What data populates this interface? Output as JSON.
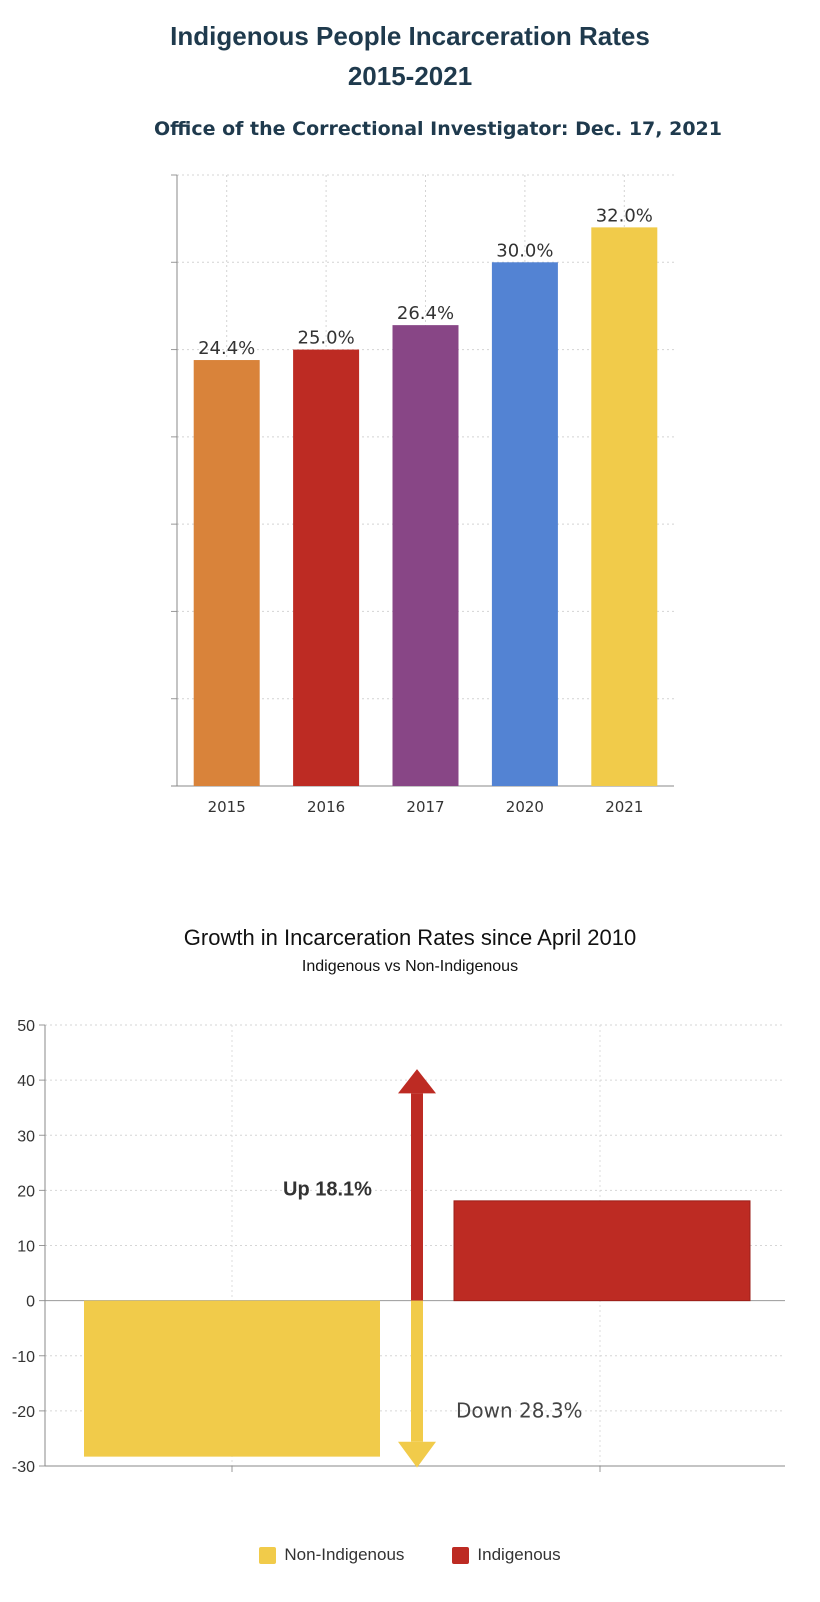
{
  "chart_data": [
    {
      "type": "bar",
      "title_line1": "Indigenous  People Incarceration Rates",
      "title_line2": "2015-2021",
      "subtitle": "Office of the Correctional Investigator: Dec. 17, 2021",
      "categories": [
        "2015",
        "2016",
        "2017",
        "2020",
        "2021"
      ],
      "values": [
        24.4,
        25.0,
        26.4,
        30.0,
        32.0
      ],
      "data_labels": [
        "24.4%",
        "25.0%",
        "26.4%",
        "30.0%",
        "32.0%"
      ],
      "colors": [
        "#d9833a",
        "#bd2b23",
        "#884686",
        "#5383d3",
        "#f1cb4a"
      ],
      "ylim": [
        0,
        35
      ],
      "grid": true
    },
    {
      "type": "bar",
      "title": "Growth in Incarceration Rates since April 2010",
      "subtitle": "Indigenous vs Non-Indigenous",
      "series": [
        {
          "name": "Non-Indigenous",
          "value": -28.3,
          "color": "#f1cb4a"
        },
        {
          "name": "Indigenous",
          "value": 18.1,
          "color": "#bd2b23"
        }
      ],
      "yticks": [
        "50",
        "40",
        "30",
        "20",
        "10",
        "0",
        "-10",
        "-20",
        "-30"
      ],
      "ylim": [
        -30,
        50
      ],
      "annotations": [
        "Up 18.1%",
        "Down 28.3%"
      ],
      "legend_position": "bottom",
      "grid": true
    }
  ]
}
